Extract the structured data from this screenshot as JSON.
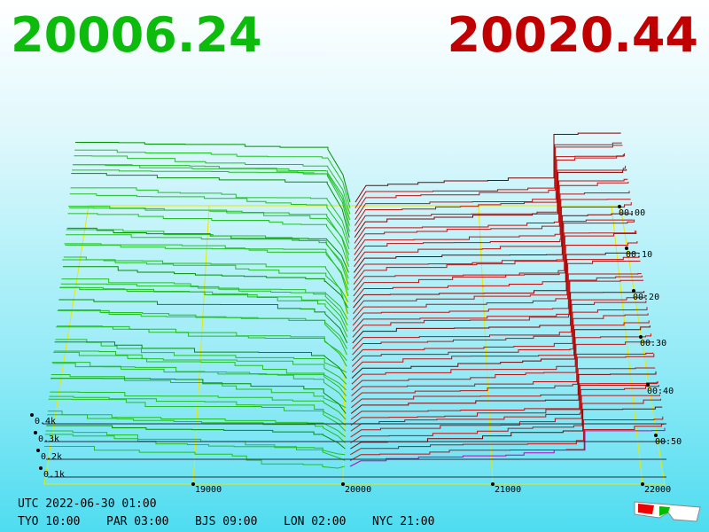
{
  "header": {
    "bid": "20006.24",
    "ask": "20020.44"
  },
  "price_axis": {
    "labels": [
      "19000",
      "20000",
      "21000",
      "22000"
    ]
  },
  "depth_axis": {
    "labels": [
      "0.4k",
      "0.3k",
      "0.2k",
      "0.1k"
    ]
  },
  "time_axis": {
    "labels": [
      "00:00",
      "00:10",
      "00:20",
      "00:30",
      "00:40",
      "00:50"
    ]
  },
  "footer": {
    "utc": "UTC 2022-06-30 01:00",
    "clocks": [
      "TYO 10:00",
      "PAR 03:00",
      "BJS 09:00",
      "LON 02:00",
      "NYC 21:00"
    ]
  }
}
